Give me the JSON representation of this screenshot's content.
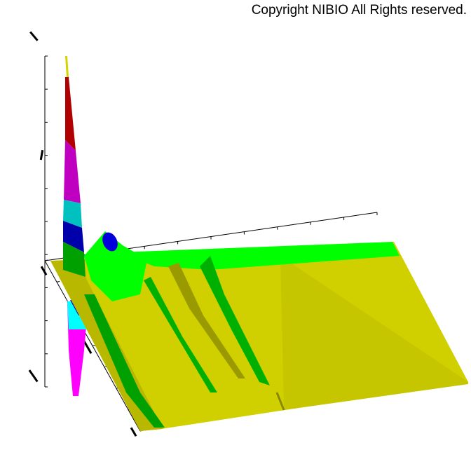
{
  "copyright": "Copyright NIBIO All Rights reserved.",
  "chart_data": {
    "type": "surface",
    "title": "",
    "grid": false,
    "colors": {
      "surface_base": "#d4d400",
      "low": "#00ff00",
      "mid_low": "#00b000",
      "mid": "#0000cc",
      "mid_high": "#00c0c0",
      "high": "#c000c0",
      "top": "#b00000",
      "negative_cyan": "#00ffff",
      "negative_magenta": "#ff00ff"
    }
  }
}
